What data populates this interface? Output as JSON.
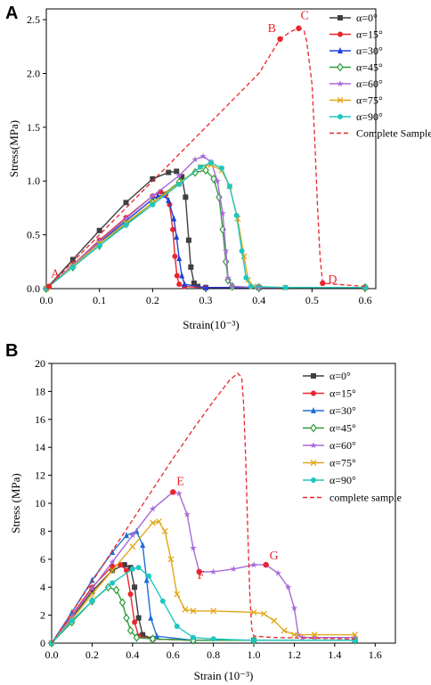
{
  "panels": [
    {
      "letter": "A"
    },
    {
      "letter": "B"
    }
  ],
  "chart_data": [
    {
      "type": "line",
      "panel": "A",
      "xlabel": "Strain(10⁻³)",
      "ylabel": "Stress(MPa)",
      "xlim": [
        0,
        0.62
      ],
      "ylim": [
        0,
        2.6
      ],
      "xticks": [
        0.0,
        0.1,
        0.2,
        0.3,
        0.4,
        0.5,
        0.6
      ],
      "xtick_labels": [
        "0.0",
        "0.1",
        "0.2",
        "0.3",
        "0.4",
        "0.5",
        "0.6"
      ],
      "yticks": [
        0.0,
        0.5,
        1.0,
        1.5,
        2.0,
        2.5
      ],
      "ytick_labels": [
        "0.0",
        "0.5",
        "1.0",
        "1.5",
        "2.0",
        "2.5"
      ],
      "legend_position": "top-right",
      "series": [
        {
          "name": "α=0°",
          "color": "#3f3f3f",
          "marker": "square",
          "dashed": false,
          "x": [
            0,
            0.05,
            0.1,
            0.15,
            0.2,
            0.23,
            0.245,
            0.255,
            0.262,
            0.268,
            0.272,
            0.278,
            0.285,
            0.3,
            0.4,
            0.6
          ],
          "y": [
            0,
            0.27,
            0.54,
            0.8,
            1.02,
            1.08,
            1.09,
            1.04,
            0.85,
            0.45,
            0.2,
            0.05,
            0.02,
            0.01,
            0.01,
            0.01
          ]
        },
        {
          "name": "α=15°",
          "color": "#e8262b",
          "marker": "circle",
          "dashed": false,
          "x": [
            0,
            0.05,
            0.1,
            0.15,
            0.2,
            0.215,
            0.225,
            0.232,
            0.238,
            0.242,
            0.246,
            0.25,
            0.26,
            0.3,
            0.4,
            0.6
          ],
          "y": [
            0,
            0.22,
            0.45,
            0.66,
            0.86,
            0.9,
            0.88,
            0.78,
            0.55,
            0.3,
            0.12,
            0.04,
            0.02,
            0.01,
            0.01,
            0.01
          ]
        },
        {
          "name": "α=30°",
          "color": "#2040d8",
          "marker": "triangle",
          "dashed": false,
          "x": [
            0,
            0.05,
            0.1,
            0.15,
            0.2,
            0.21,
            0.22,
            0.23,
            0.24,
            0.245,
            0.25,
            0.255,
            0.26,
            0.3,
            0.4,
            0.6
          ],
          "y": [
            0,
            0.21,
            0.43,
            0.63,
            0.83,
            0.86,
            0.87,
            0.82,
            0.65,
            0.48,
            0.28,
            0.12,
            0.04,
            0.01,
            0.01,
            0.01
          ]
        },
        {
          "name": "α=45°",
          "color": "#2e9e3e",
          "marker": "diamond",
          "dashed": false,
          "x": [
            0,
            0.05,
            0.1,
            0.15,
            0.2,
            0.25,
            0.28,
            0.3,
            0.315,
            0.325,
            0.332,
            0.338,
            0.342,
            0.35,
            0.4,
            0.6
          ],
          "y": [
            0,
            0.2,
            0.4,
            0.6,
            0.8,
            0.99,
            1.08,
            1.1,
            1.02,
            0.85,
            0.55,
            0.25,
            0.08,
            0.02,
            0.01,
            0.01
          ]
        },
        {
          "name": "α=60°",
          "color": "#a86ad8",
          "marker": "star",
          "dashed": false,
          "x": [
            0,
            0.05,
            0.1,
            0.15,
            0.2,
            0.25,
            0.28,
            0.295,
            0.31,
            0.322,
            0.332,
            0.338,
            0.342,
            0.35,
            0.4,
            0.6
          ],
          "y": [
            0,
            0.22,
            0.44,
            0.65,
            0.86,
            1.05,
            1.2,
            1.23,
            1.18,
            1.0,
            0.7,
            0.35,
            0.1,
            0.02,
            0.01,
            0.01
          ]
        },
        {
          "name": "α=75°",
          "color": "#e0a817",
          "marker": "x",
          "dashed": false,
          "x": [
            0,
            0.05,
            0.1,
            0.15,
            0.2,
            0.25,
            0.29,
            0.31,
            0.33,
            0.345,
            0.36,
            0.372,
            0.38,
            0.39,
            0.45,
            0.6
          ],
          "y": [
            0,
            0.21,
            0.42,
            0.61,
            0.8,
            0.98,
            1.13,
            1.15,
            1.1,
            0.95,
            0.65,
            0.3,
            0.08,
            0.02,
            0.01,
            0.01
          ]
        },
        {
          "name": "α=90°",
          "color": "#20c6c0",
          "marker": "circle",
          "dashed": false,
          "x": [
            0,
            0.05,
            0.1,
            0.15,
            0.2,
            0.25,
            0.29,
            0.31,
            0.33,
            0.345,
            0.358,
            0.368,
            0.376,
            0.385,
            0.45,
            0.6
          ],
          "y": [
            0,
            0.2,
            0.4,
            0.59,
            0.78,
            0.97,
            1.13,
            1.17,
            1.12,
            0.95,
            0.68,
            0.35,
            0.1,
            0.02,
            0.01,
            0.01
          ]
        },
        {
          "name": "Complete Sample",
          "color": "#e8262b",
          "marker": "none",
          "dashed": true,
          "x": [
            0,
            0.1,
            0.2,
            0.3,
            0.4,
            0.44,
            0.46,
            0.475,
            0.485,
            0.49,
            0.5,
            0.505,
            0.51,
            0.515,
            0.52,
            0.6
          ],
          "y": [
            0,
            0.5,
            1.0,
            1.5,
            2.0,
            2.32,
            2.39,
            2.42,
            2.4,
            2.3,
            1.9,
            1.4,
            0.8,
            0.3,
            0.05,
            0.02
          ]
        }
      ],
      "annotations": [
        {
          "label": "A",
          "x": 0.005,
          "y": 0.02,
          "color": "#e8262b",
          "point": true
        },
        {
          "label": "B",
          "x": 0.44,
          "y": 2.32,
          "color": "#e8262b",
          "point": true
        },
        {
          "label": "C",
          "x": 0.475,
          "y": 2.42,
          "color": "#e8262b",
          "point": true
        },
        {
          "label": "D",
          "x": 0.52,
          "y": 0.05,
          "color": "#e8262b",
          "point": true
        }
      ]
    },
    {
      "type": "line",
      "panel": "B",
      "xlabel": "Strain (10⁻³)",
      "ylabel": "Stress (MPa)",
      "xlim": [
        0,
        1.7
      ],
      "ylim": [
        0,
        20
      ],
      "xticks": [
        0.0,
        0.2,
        0.4,
        0.6,
        0.8,
        1.0,
        1.2,
        1.4,
        1.6
      ],
      "xtick_labels": [
        "0.0",
        "0.2",
        "0.4",
        "0.6",
        "0.8",
        "1.0",
        "1.2",
        "1.4",
        "1.6"
      ],
      "yticks": [
        0,
        2,
        4,
        6,
        8,
        10,
        12,
        14,
        16,
        18,
        20
      ],
      "ytick_labels": [
        "0",
        "2",
        "4",
        "6",
        "8",
        "10",
        "12",
        "14",
        "16",
        "18",
        "20"
      ],
      "legend_position": "right",
      "series": [
        {
          "name": "α=0°",
          "color": "#3f3f3f",
          "marker": "square",
          "dashed": false,
          "x": [
            0,
            0.1,
            0.2,
            0.3,
            0.36,
            0.39,
            0.41,
            0.43,
            0.45,
            0.5,
            0.7,
            1.0,
            1.5
          ],
          "y": [
            0,
            1.8,
            3.7,
            5.2,
            5.6,
            5.4,
            4.0,
            1.8,
            0.6,
            0.3,
            0.2,
            0.2,
            0.2
          ]
        },
        {
          "name": "α=15°",
          "color": "#e8262b",
          "marker": "circle",
          "dashed": false,
          "x": [
            0,
            0.1,
            0.2,
            0.3,
            0.34,
            0.37,
            0.39,
            0.41,
            0.43,
            0.5,
            0.7,
            1.0,
            1.5
          ],
          "y": [
            0,
            2.0,
            4.0,
            5.5,
            5.6,
            5.2,
            3.5,
            1.5,
            0.5,
            0.3,
            0.2,
            0.2,
            0.2
          ]
        },
        {
          "name": "α=30°",
          "color": "#1f6fd6",
          "marker": "triangle",
          "dashed": false,
          "x": [
            0,
            0.1,
            0.2,
            0.3,
            0.37,
            0.42,
            0.45,
            0.47,
            0.49,
            0.52,
            0.7,
            1.0,
            1.5
          ],
          "y": [
            0,
            2.2,
            4.5,
            6.5,
            7.7,
            8.0,
            7.0,
            4.5,
            1.8,
            0.5,
            0.2,
            0.2,
            0.2
          ]
        },
        {
          "name": "α=45°",
          "color": "#2e9e3e",
          "marker": "diamond",
          "dashed": false,
          "x": [
            0,
            0.1,
            0.2,
            0.28,
            0.32,
            0.35,
            0.37,
            0.39,
            0.42,
            0.5,
            0.7,
            1.0,
            1.5
          ],
          "y": [
            0,
            1.5,
            3.0,
            4.0,
            3.8,
            2.9,
            1.8,
            0.9,
            0.4,
            0.3,
            0.2,
            0.2,
            0.2
          ]
        },
        {
          "name": "α=60°",
          "color": "#a86ad8",
          "marker": "star",
          "dashed": false,
          "x": [
            0,
            0.1,
            0.2,
            0.3,
            0.4,
            0.5,
            0.6,
            0.63,
            0.67,
            0.7,
            0.73,
            0.8,
            0.9,
            1.0,
            1.06,
            1.12,
            1.17,
            1.2,
            1.22,
            1.24,
            1.3,
            1.5
          ],
          "y": [
            0,
            1.9,
            3.9,
            5.8,
            7.7,
            9.6,
            10.8,
            10.7,
            9.2,
            6.8,
            5.1,
            5.1,
            5.3,
            5.6,
            5.6,
            5.0,
            4.0,
            2.5,
            0.6,
            0.4,
            0.4,
            0.4
          ]
        },
        {
          "name": "α=75°",
          "color": "#e0a817",
          "marker": "x",
          "dashed": false,
          "x": [
            0,
            0.1,
            0.2,
            0.3,
            0.4,
            0.5,
            0.53,
            0.56,
            0.59,
            0.62,
            0.66,
            0.7,
            0.8,
            1.0,
            1.05,
            1.1,
            1.15,
            1.2,
            1.3,
            1.5
          ],
          "y": [
            0,
            1.7,
            3.5,
            5.2,
            6.9,
            8.6,
            8.7,
            8.0,
            6.0,
            3.5,
            2.4,
            2.3,
            2.3,
            2.2,
            2.1,
            1.6,
            0.9,
            0.6,
            0.6,
            0.6
          ]
        },
        {
          "name": "α=90°",
          "color": "#20c6c0",
          "marker": "circle",
          "dashed": false,
          "x": [
            0,
            0.1,
            0.2,
            0.3,
            0.4,
            0.43,
            0.48,
            0.55,
            0.62,
            0.7,
            0.8,
            1.0,
            1.5
          ],
          "y": [
            0,
            1.6,
            3.0,
            4.3,
            5.3,
            5.4,
            4.8,
            3.0,
            1.2,
            0.4,
            0.3,
            0.2,
            0.2
          ]
        },
        {
          "name": "complete sample",
          "color": "#e8262b",
          "marker": "none",
          "dashed": true,
          "x": [
            0,
            0.1,
            0.2,
            0.3,
            0.4,
            0.5,
            0.6,
            0.7,
            0.8,
            0.88,
            0.92,
            0.94,
            0.95,
            0.96,
            0.97,
            0.98,
            0.99,
            1.0,
            1.1,
            1.5
          ],
          "y": [
            0,
            2.2,
            4.4,
            6.6,
            8.8,
            11.0,
            13.2,
            15.3,
            17.3,
            18.8,
            19.3,
            19.0,
            17.0,
            13.0,
            8.0,
            3.5,
            1.0,
            0.5,
            0.4,
            0.3
          ]
        }
      ],
      "annotations": [
        {
          "label": "E",
          "x": 0.6,
          "y": 10.8,
          "color": "#e8262b",
          "point": true
        },
        {
          "label": "F",
          "x": 0.73,
          "y": 5.1,
          "color": "#e8262b",
          "point": true
        },
        {
          "label": "G",
          "x": 1.06,
          "y": 5.6,
          "color": "#e8262b",
          "point": true
        }
      ]
    }
  ]
}
